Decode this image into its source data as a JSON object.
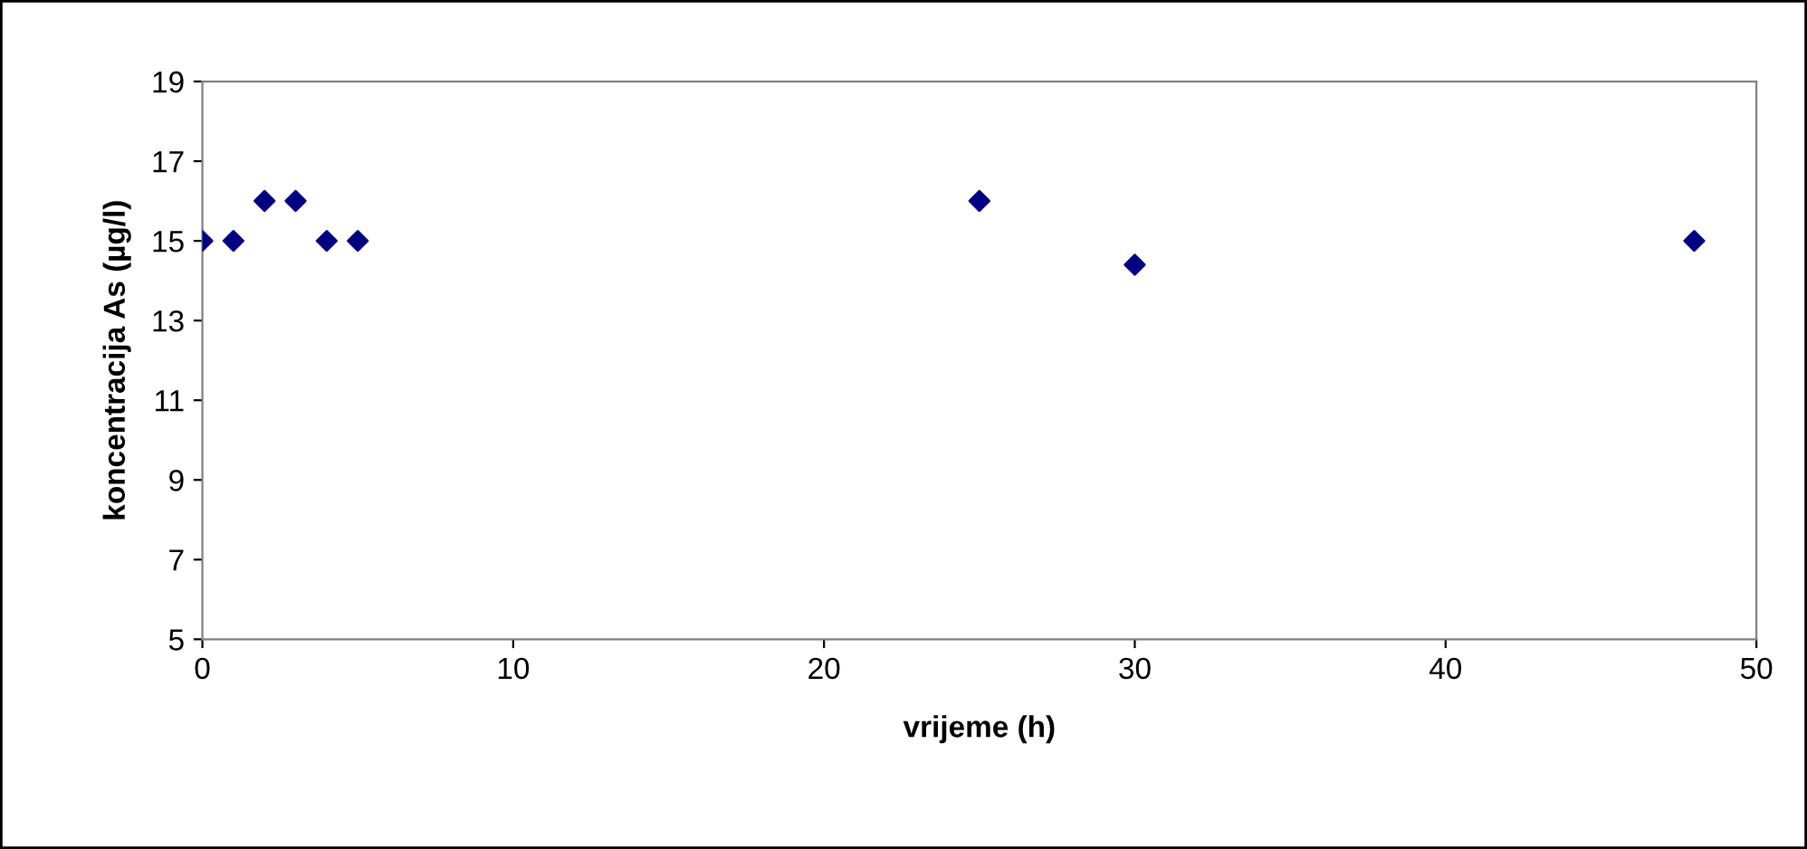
{
  "chart_data": {
    "type": "scatter",
    "xlabel": "vrijeme (h)",
    "ylabel": "koncentracija As (µg/l)",
    "x": [
      0,
      1,
      2,
      3,
      4,
      5,
      25,
      30,
      48
    ],
    "series": [
      {
        "color": "#000080",
        "values": [
          15,
          15,
          16,
          16,
          15,
          15,
          16,
          14.4,
          15
        ]
      }
    ],
    "xlim": [
      0,
      50
    ],
    "xticks": [
      0,
      10,
      20,
      30,
      40,
      50
    ],
    "ylim": [
      5,
      19
    ],
    "yticks": [
      5,
      7,
      9,
      11,
      13,
      15,
      17,
      19
    ],
    "grid": false,
    "legend": false,
    "marker": "diamond"
  }
}
